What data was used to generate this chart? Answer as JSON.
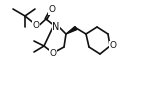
{
  "bg_color": "#ffffff",
  "line_color": "#111111",
  "line_width": 1.2,
  "figsize": [
    1.49,
    0.92
  ],
  "dpi": 100,
  "xlim": [
    0,
    149
  ],
  "ylim": [
    0,
    92
  ]
}
